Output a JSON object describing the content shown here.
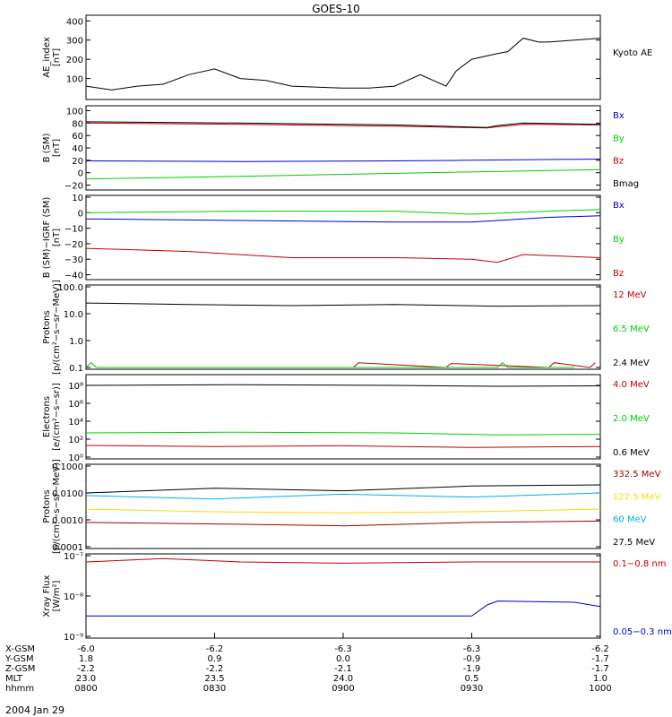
{
  "title": "GOES-10",
  "date_label": "2004 Jan 29",
  "colors": {
    "black": "#000000",
    "red": "#c00000",
    "green": "#00cc00",
    "blue": "#0000cc",
    "lightgreen": "#00dd44",
    "yellow": "#f0e000",
    "cyan": "#00b0e0",
    "darkred": "#990000"
  },
  "x_axis": {
    "time_range": [
      "0800",
      "1000"
    ],
    "rows": [
      {
        "label": "X-GSM",
        "values": [
          "-6.0",
          "-6.2",
          "-6.3",
          "-6.3",
          "-6.2"
        ]
      },
      {
        "label": "Y-GSM",
        "values": [
          "1.8",
          "0.9",
          "0.0",
          "-0.9",
          "-1.7"
        ]
      },
      {
        "label": "Z-GSM",
        "values": [
          "-2.2",
          "-2.2",
          "-2.1",
          "-1.9",
          "-1.7"
        ]
      },
      {
        "label": "MLT",
        "values": [
          "23.0",
          "23.5",
          "24.0",
          "0.5",
          "1.0"
        ]
      },
      {
        "label": "hhmm",
        "values": [
          "0800",
          "0830",
          "0900",
          "0930",
          "1000"
        ]
      }
    ]
  },
  "chart_data": [
    {
      "type": "line",
      "ylabel": "AE_index\n[nT]",
      "ylim": [
        0,
        420
      ],
      "scale": "linear",
      "yticks": [
        100,
        200,
        300,
        400
      ],
      "ytick_labels": [
        "100",
        "200",
        "300",
        "400"
      ],
      "series": [
        {
          "name": "Kyoto AE",
          "color": "black",
          "x": [
            0,
            0.05,
            0.1,
            0.15,
            0.2,
            0.25,
            0.3,
            0.35,
            0.4,
            0.45,
            0.5,
            0.55,
            0.6,
            0.65,
            0.7,
            0.72,
            0.75,
            0.8,
            0.82,
            0.85,
            0.88,
            0.9,
            0.95,
            1
          ],
          "y": [
            60,
            40,
            60,
            70,
            120,
            150,
            100,
            90,
            60,
            55,
            50,
            50,
            60,
            120,
            60,
            140,
            200,
            230,
            240,
            310,
            290,
            290,
            300,
            310
          ]
        }
      ]
    },
    {
      "type": "line",
      "ylabel": "B (SM)\n[nT]",
      "ylim": [
        -25,
        105
      ],
      "scale": "linear",
      "yticks": [
        -20,
        0,
        20,
        40,
        60,
        80,
        100
      ],
      "ytick_labels": [
        "−20",
        "0",
        "20",
        "40",
        "60",
        "80",
        "100"
      ],
      "series": [
        {
          "name": "Bx",
          "color": "blue",
          "x": [
            0,
            0.3,
            0.6,
            0.75,
            1
          ],
          "y": [
            19,
            18,
            19,
            20,
            22
          ]
        },
        {
          "name": "By",
          "color": "green",
          "x": [
            0,
            0.3,
            0.6,
            1
          ],
          "y": [
            -10,
            -6,
            -1,
            5
          ]
        },
        {
          "name": "Bz",
          "color": "red",
          "x": [
            0,
            0.3,
            0.6,
            0.78,
            0.8,
            0.85,
            1
          ],
          "y": [
            80,
            78,
            75,
            72,
            74,
            78,
            77
          ]
        },
        {
          "name": "Bmag",
          "color": "black",
          "x": [
            0,
            0.3,
            0.6,
            0.78,
            0.8,
            0.85,
            1
          ],
          "y": [
            82,
            80,
            77,
            73,
            76,
            80,
            78
          ]
        }
      ]
    },
    {
      "type": "line",
      "ylabel": "B (SM)−IGRF (SM)\n[nT]",
      "ylim": [
        -42,
        10
      ],
      "scale": "linear",
      "yticks": [
        -40,
        -30,
        -20,
        -10,
        0,
        10
      ],
      "ytick_labels": [
        "−40",
        "−30",
        "−20",
        "−10",
        "0",
        "10"
      ],
      "series": [
        {
          "name": "Bx",
          "color": "blue",
          "x": [
            0,
            0.3,
            0.6,
            0.75,
            0.9,
            1
          ],
          "y": [
            -4,
            -5,
            -6,
            -6,
            -3,
            -2
          ]
        },
        {
          "name": "By",
          "color": "green",
          "x": [
            0,
            0.3,
            0.6,
            0.75,
            0.9,
            1
          ],
          "y": [
            0,
            1,
            1,
            -1,
            1,
            2
          ]
        },
        {
          "name": "Bz",
          "color": "red",
          "x": [
            0,
            0.2,
            0.4,
            0.6,
            0.75,
            0.8,
            0.85,
            1
          ],
          "y": [
            -23,
            -25,
            -29,
            -29,
            -30,
            -32,
            -27,
            -29
          ]
        }
      ]
    },
    {
      "type": "line",
      "ylabel": "Protons\n[p/(cm²−s−sr−MeV)]",
      "ylim": [
        0.1,
        100
      ],
      "scale": "log",
      "yticks": [
        0.1,
        1,
        10,
        100
      ],
      "ytick_labels": [
        "0.1",
        "1.0",
        "10.0",
        "100.0"
      ],
      "series": [
        {
          "name": "12 MeV",
          "color": "red",
          "x": [
            0.52,
            0.53,
            0.7,
            0.71,
            0.9,
            0.91,
            0.98,
            0.99
          ],
          "y": [
            0.1,
            0.15,
            0.1,
            0.14,
            0.1,
            0.15,
            0.1,
            0.15
          ]
        },
        {
          "name": "6.5 MeV",
          "color": "green",
          "x": [
            0,
            0.01,
            0.02,
            0.8,
            0.81,
            0.82,
            0.95
          ],
          "y": [
            0.1,
            0.15,
            0.1,
            0.1,
            0.15,
            0.1,
            0.1
          ]
        },
        {
          "name": "2.4 MeV",
          "color": "black",
          "x": [
            0,
            0.2,
            0.4,
            0.6,
            0.8,
            1
          ],
          "y": [
            25,
            22,
            20,
            22,
            19,
            20
          ]
        }
      ]
    },
    {
      "type": "line",
      "ylabel": "Electrons\n[e/(cm²−s−sr)]",
      "ylim": [
        1,
        1000000000
      ],
      "scale": "log",
      "yticks": [
        1,
        100,
        10000,
        1000000,
        100000000
      ],
      "ytick_labels": [
        "10⁰",
        "10²",
        "10⁴",
        "10⁶",
        "10⁸"
      ],
      "series": [
        {
          "name": "4.0 MeV",
          "color": "red",
          "x": [
            0,
            0.25,
            0.5,
            0.75,
            1
          ],
          "y": [
            20,
            15,
            18,
            12,
            15
          ]
        },
        {
          "name": "2.0 MeV",
          "color": "green",
          "x": [
            0,
            0.3,
            0.6,
            0.8,
            1
          ],
          "y": [
            500,
            600,
            500,
            300,
            350
          ]
        },
        {
          "name": "0.6 MeV",
          "color": "black",
          "x": [
            0,
            0.3,
            0.6,
            0.8,
            1
          ],
          "y": [
            100000000,
            120000000,
            100000000,
            80000000,
            90000000
          ]
        }
      ]
    },
    {
      "type": "line",
      "ylabel": "Protons\n[p/(cm²−s−sr−MeV)]",
      "ylim": [
        0.0001,
        0.1
      ],
      "scale": "log",
      "yticks": [
        0.0001,
        0.001,
        0.01,
        0.1
      ],
      "ytick_labels": [
        "0.0001",
        "0.0010",
        "0.0100",
        "0.1000"
      ],
      "series": [
        {
          "name": "332.5 MeV",
          "color": "darkred",
          "x": [
            0,
            0.25,
            0.5,
            0.75,
            1
          ],
          "y": [
            0.0008,
            0.0007,
            0.0006,
            0.0008,
            0.0009
          ]
        },
        {
          "name": "122.5 MeV",
          "color": "yellow",
          "x": [
            0,
            0.25,
            0.5,
            0.75,
            1
          ],
          "y": [
            0.0025,
            0.002,
            0.0018,
            0.002,
            0.0025
          ]
        },
        {
          "name": "60 MeV",
          "color": "cyan",
          "x": [
            0,
            0.25,
            0.5,
            0.75,
            1
          ],
          "y": [
            0.008,
            0.006,
            0.009,
            0.007,
            0.01
          ]
        },
        {
          "name": "27.5 MeV",
          "color": "black",
          "x": [
            0,
            0.25,
            0.5,
            0.75,
            1
          ],
          "y": [
            0.01,
            0.015,
            0.012,
            0.018,
            0.02
          ]
        }
      ]
    },
    {
      "type": "line",
      "ylabel": "Xray Flux\n[W/m²]",
      "ylim": [
        1e-09,
        1e-07
      ],
      "scale": "log",
      "yticks": [
        1e-09,
        1e-08,
        1e-07
      ],
      "ytick_labels": [
        "10⁻⁹",
        "10⁻⁸",
        "10⁻⁷"
      ],
      "series": [
        {
          "name": "0.1−0.8 nm",
          "color": "red",
          "x": [
            0,
            0.15,
            0.3,
            0.5,
            0.75,
            1
          ],
          "y": [
            7e-08,
            8.5e-08,
            7e-08,
            6.5e-08,
            7e-08,
            7e-08
          ]
        },
        {
          "name": "0.05−0.3 nm",
          "color": "blue",
          "x": [
            0,
            0.75,
            0.78,
            0.8,
            0.95,
            1
          ],
          "y": [
            3.2e-09,
            3.2e-09,
            6e-09,
            7.5e-09,
            7e-09,
            5.5e-09
          ]
        }
      ]
    }
  ]
}
